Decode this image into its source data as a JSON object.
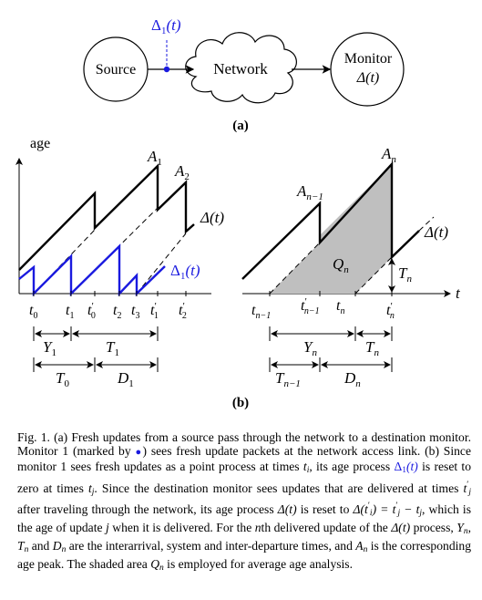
{
  "colors": {
    "black": "#000000",
    "blue": "#1a1adf",
    "shade": "#bfbfbf"
  },
  "panel_a": {
    "source_label": "Source",
    "network_label": "Network",
    "monitor_label": "Monitor",
    "monitor_func": "Δ(t)",
    "delta1_label": "Δ",
    "delta1_sub": "1",
    "delta1_arg": "(t)",
    "panel_label": "(a)"
  },
  "panel_b": {
    "age_label": "age",
    "A": "A",
    "A1_sub": "1",
    "A2_sub": "2",
    "An_sub": "n",
    "An1_sub": "n−1",
    "delta_left": "Δ(t)",
    "delta_right": "Δ(t)",
    "delta1": "Δ",
    "delta1_sub": "1",
    "delta1_arg": "(t)",
    "Qn": "Q",
    "Qn_sub": "n",
    "Tn": "T",
    "Tn_sub": "n",
    "t_axis": "t",
    "ticks_left": [
      {
        "base": "t",
        "sub": "0",
        "prime": ""
      },
      {
        "base": "t",
        "sub": "1",
        "prime": ""
      },
      {
        "base": "t",
        "sub": "0",
        "prime": "′"
      },
      {
        "base": "t",
        "sub": "2",
        "prime": ""
      },
      {
        "base": "t",
        "sub": "3",
        "prime": ""
      },
      {
        "base": "t",
        "sub": "1",
        "prime": "′"
      },
      {
        "base": "t",
        "sub": "2",
        "prime": "′"
      }
    ],
    "ticks_right": [
      {
        "base": "t",
        "sub": "n−1",
        "prime": ""
      },
      {
        "base": "t",
        "sub": "n−1",
        "prime": "′"
      },
      {
        "base": "t",
        "sub": "n",
        "prime": ""
      },
      {
        "base": "t",
        "sub": "n",
        "prime": "′"
      }
    ],
    "intervals_left": [
      {
        "base": "Y",
        "sub": "1"
      },
      {
        "base": "T",
        "sub": "1"
      },
      {
        "base": "T",
        "sub": "0"
      },
      {
        "base": "D",
        "sub": "1"
      }
    ],
    "intervals_right": [
      {
        "base": "Y",
        "sub": "n"
      },
      {
        "base": "T",
        "sub": "n"
      },
      {
        "base": "T",
        "sub": "n−1"
      },
      {
        "base": "D",
        "sub": "n"
      }
    ],
    "panel_label": "(b)"
  },
  "caption": {
    "p1": "Fig. 1.   (a) Fresh updates from a source pass through the network to a destination monitor. Monitor 1 (marked by ",
    "p2": ") sees fresh update packets at the network access link. (b) Since monitor 1 sees fresh updates as a point process at times ",
    "t_i": "t",
    "i": "i",
    "p3": ", its age process ",
    "delta1_in_caption": "Δ",
    "one": "1",
    "t_arg": "(t)",
    "p4": " is reset to zero at times ",
    "t_j": "t",
    "j": "j",
    "p5": ". Since the destination monitor sees updates that are delivered at times ",
    "t_j_prime": "t",
    "prime": "′",
    "p6": " after traveling through the network, its age process ",
    "delta_t": "Δ(t)",
    "p7": " is reset to ",
    "reset_expr": "Δ(t",
    "reset_expr2": ") = t",
    "reset_expr3": " − t",
    "p8": ", which is the age of update ",
    "j2": "j",
    "p9": " when it is delivered. For the ",
    "n": "n",
    "p10": "th delivered update of the ",
    "p11": " process, ",
    "Yn": "Y",
    "Tn": "T",
    "Dn": "D",
    "An": "A",
    "sub_n": "n",
    "p12": ", ",
    "p13": " and ",
    "p14": " are the interarrival, system and inter-departure times, and ",
    "p15": " is the corresponding age peak. The shaded area ",
    "Qn": "Q",
    "p16": " is employed for average age analysis."
  }
}
